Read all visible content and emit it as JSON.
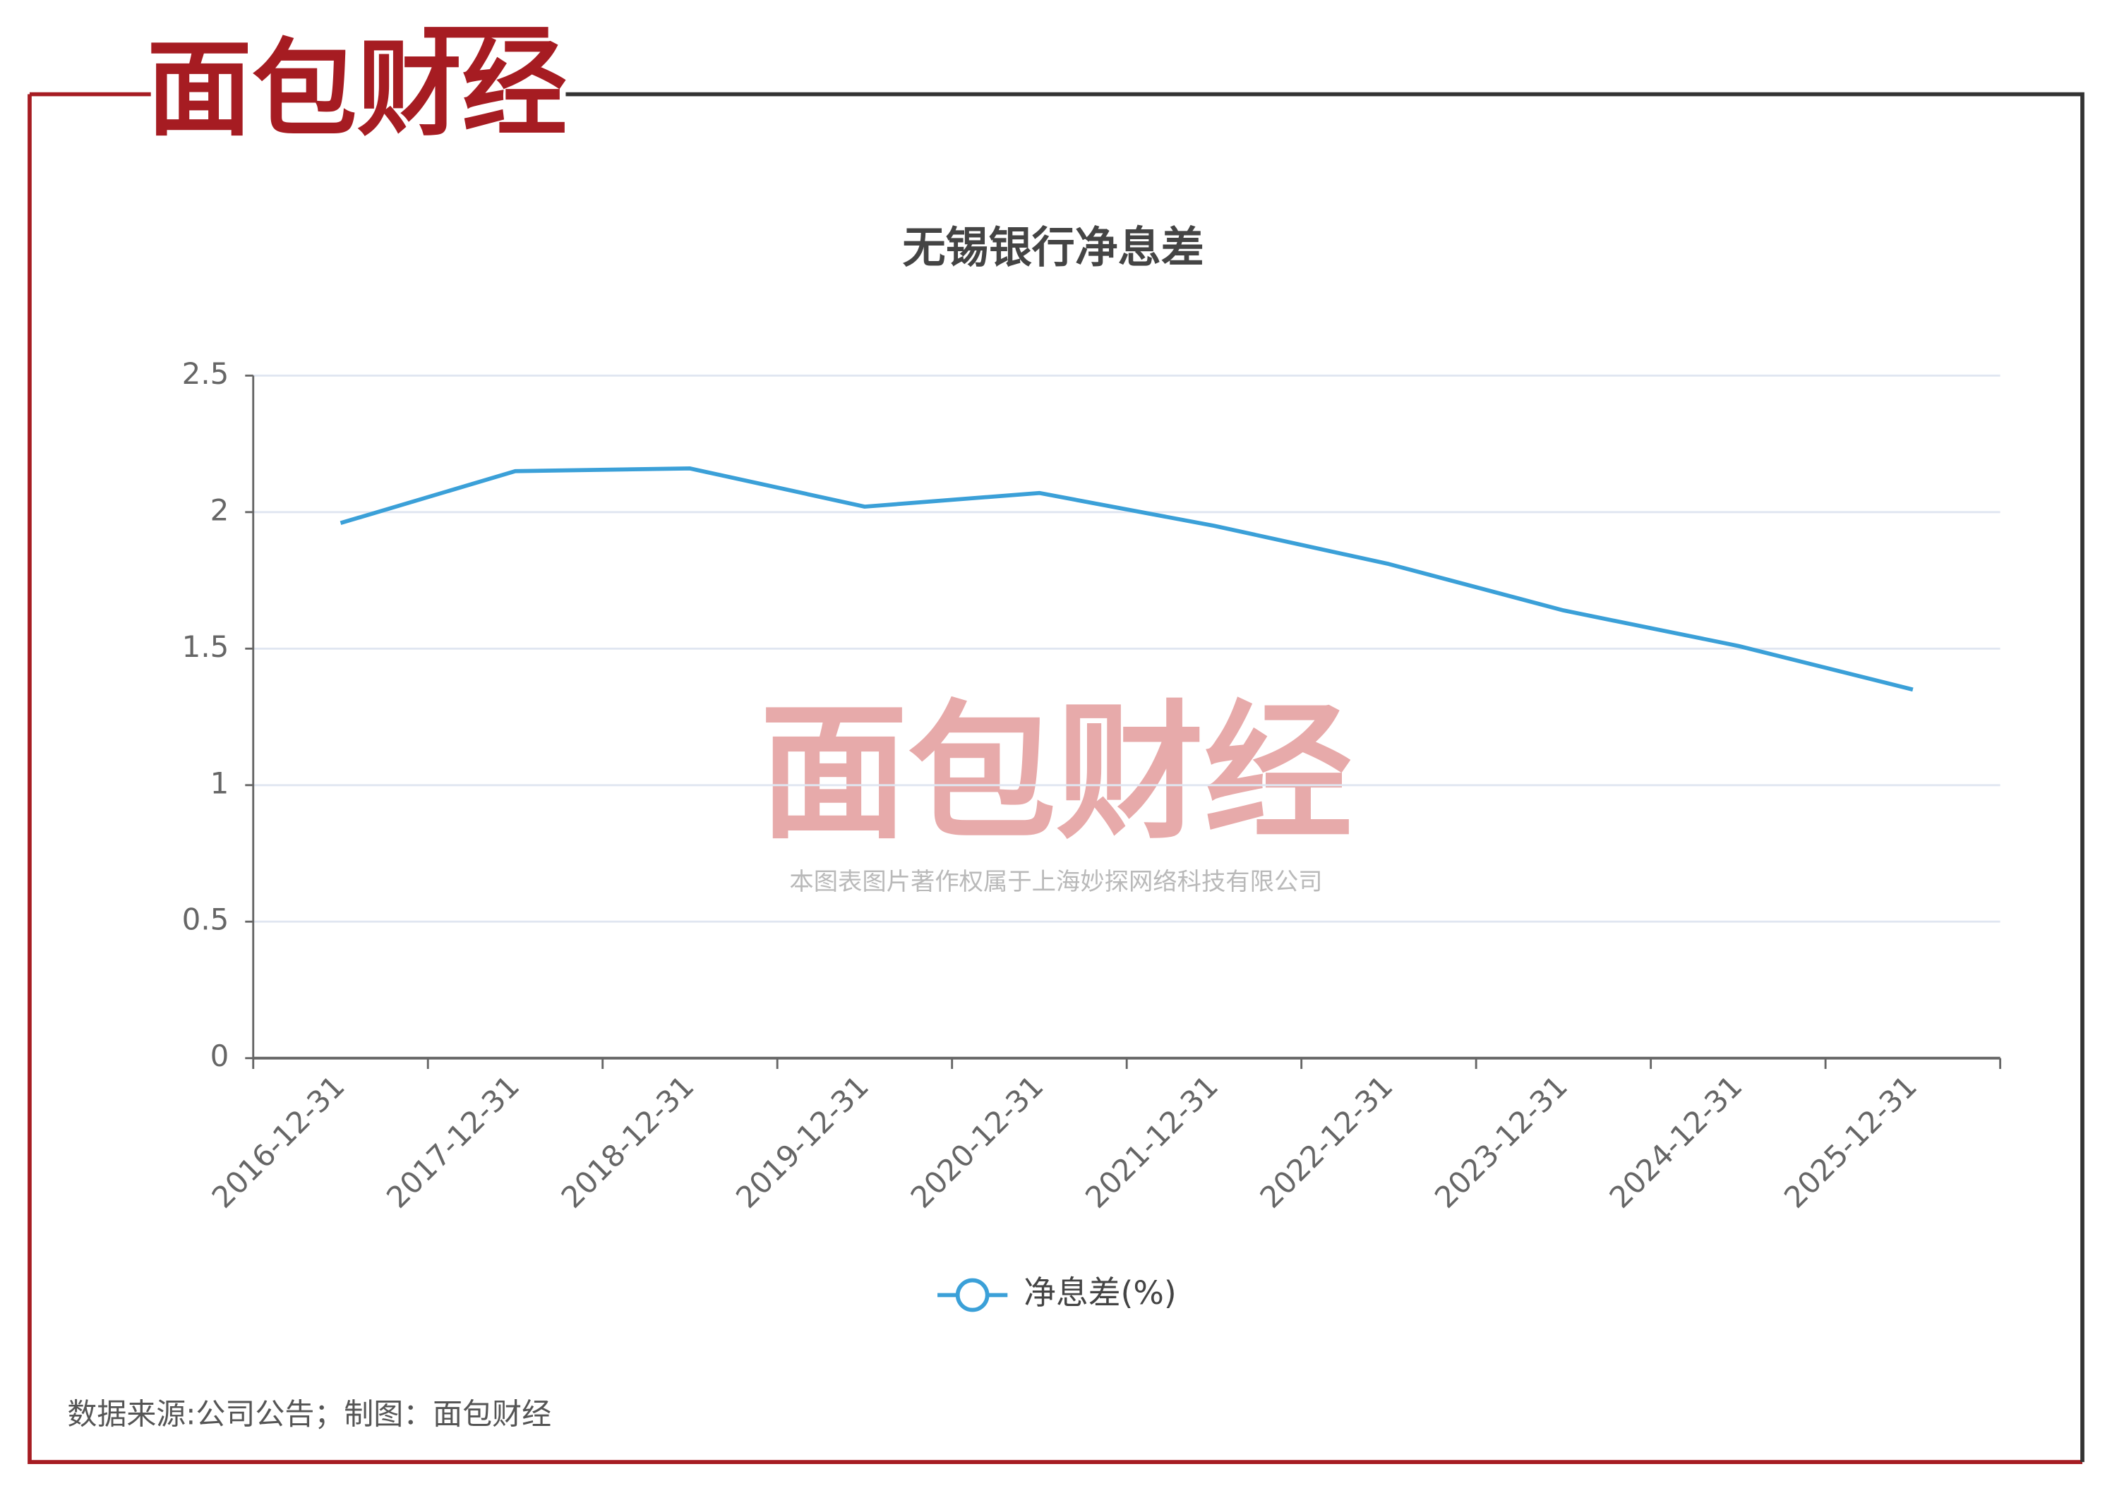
{
  "logo": "面包财经",
  "watermark": {
    "logo": "面包财经",
    "text": "本图表图片著作权属于上海妙探网络科技有限公司"
  },
  "source": "数据来源:公司公告；制图：面包财经",
  "chart_data": {
    "type": "line",
    "title": "无锡银行净息差",
    "categories": [
      "2016-12-31",
      "2017-12-31",
      "2018-12-31",
      "2019-12-31",
      "2020-12-31",
      "2021-12-31",
      "2022-12-31",
      "2023-12-31",
      "2024-12-31",
      "2025-12-31"
    ],
    "series": [
      {
        "name": "净息差(%)",
        "color": "#3ba0d8",
        "values": [
          1.96,
          2.15,
          2.16,
          2.02,
          2.07,
          1.95,
          1.81,
          1.64,
          1.51,
          1.35
        ]
      }
    ],
    "ylim": [
      0,
      2.5
    ],
    "yticks": [
      0,
      0.5,
      1,
      1.5,
      2,
      2.5
    ],
    "grid": true,
    "legend": "bottom"
  }
}
